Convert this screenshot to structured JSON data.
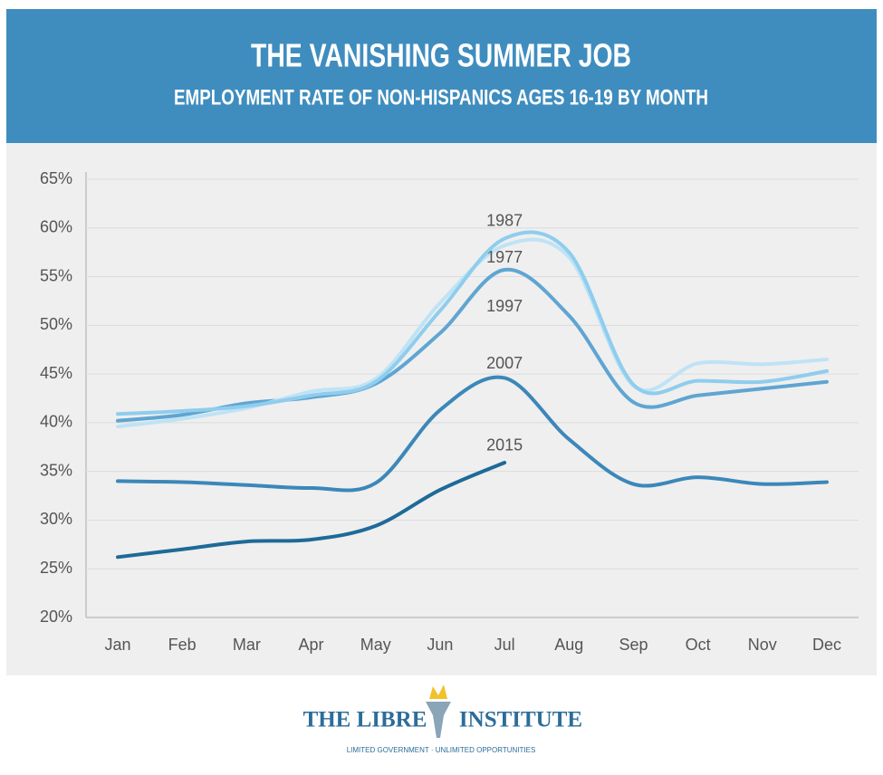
{
  "chart_data": {
    "type": "line",
    "title": "THE VANISHING SUMMER JOB",
    "subtitle": "EMPLOYMENT RATE OF NON-HISPANICS AGES 16-19 BY MONTH",
    "categories": [
      "Jan",
      "Feb",
      "Mar",
      "Apr",
      "May",
      "Jun",
      "Jul",
      "Aug",
      "Sep",
      "Oct",
      "Nov",
      "Dec"
    ],
    "ylim": [
      20,
      65
    ],
    "yticks": [
      {
        "value": 20,
        "label": "20%"
      },
      {
        "value": 25,
        "label": "25%"
      },
      {
        "value": 30,
        "label": "30%"
      },
      {
        "value": 35,
        "label": "35%"
      },
      {
        "value": 40,
        "label": "40%"
      },
      {
        "value": 45,
        "label": "45%"
      },
      {
        "value": 50,
        "label": "50%"
      },
      {
        "value": 55,
        "label": "55%"
      },
      {
        "value": 60,
        "label": "60%"
      },
      {
        "value": 65,
        "label": "65%"
      }
    ],
    "grid": true,
    "series": [
      {
        "name": "1987",
        "color": "#8fcdee",
        "values": [
          40.9,
          41.2,
          41.7,
          42.8,
          44.2,
          51.5,
          58.9,
          57.5,
          43.9,
          44.3,
          44.2,
          45.3
        ]
      },
      {
        "name": "1977",
        "color": "#bfe3f5",
        "values": [
          39.6,
          40.4,
          41.5,
          43.2,
          44.5,
          52.3,
          58.2,
          57.0,
          43.8,
          46.1,
          46.0,
          46.5
        ]
      },
      {
        "name": "1997",
        "color": "#5fa5d2",
        "values": [
          40.2,
          40.8,
          42.0,
          42.6,
          44.0,
          49.2,
          55.7,
          51.0,
          42.1,
          42.8,
          43.5,
          44.2
        ]
      },
      {
        "name": "2007",
        "color": "#3c87b9",
        "values": [
          34.0,
          33.9,
          33.6,
          33.3,
          33.8,
          41.3,
          44.6,
          38.3,
          33.7,
          34.4,
          33.7,
          33.9
        ]
      },
      {
        "name": "2015",
        "color": "#1e6a98",
        "values": [
          26.2,
          27.0,
          27.8,
          28.0,
          29.4,
          33.1,
          35.9,
          null,
          null,
          null,
          null,
          null
        ]
      }
    ]
  },
  "footer": {
    "logo": "THE LIBRE INSTITUTE",
    "tagline": "LIMITED GOVERNMENT · UNLIMITED OPPORTUNITIES"
  }
}
